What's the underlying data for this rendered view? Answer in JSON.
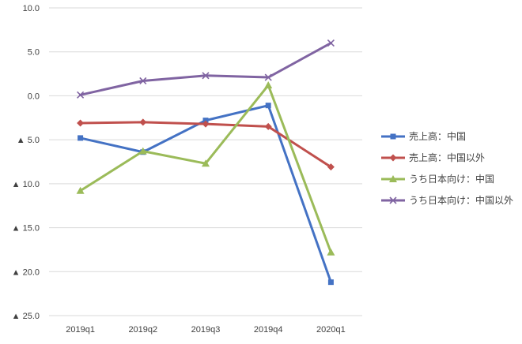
{
  "chart_data": {
    "type": "line",
    "categories": [
      "2019q1",
      "2019q2",
      "2019q3",
      "2019q4",
      "2020q1"
    ],
    "ylim": [
      -25,
      10
    ],
    "y_ticks": [
      {
        "value": 10,
        "label": "10.0"
      },
      {
        "value": 5,
        "label": "5.0"
      },
      {
        "value": 0,
        "label": "0.0"
      },
      {
        "value": -5,
        "label": "▲ 5.0"
      },
      {
        "value": -10,
        "label": "▲ 10.0"
      },
      {
        "value": -15,
        "label": "▲ 15.0"
      },
      {
        "value": -20,
        "label": "▲ 20.0"
      },
      {
        "value": -25,
        "label": "▲ 25.0"
      }
    ],
    "grid": true,
    "legend_position": "right",
    "series": [
      {
        "name": "売上高：中国",
        "color": "#4472C4",
        "marker": "square",
        "values": [
          -4.8,
          -6.4,
          -2.8,
          -1.1,
          -21.2
        ]
      },
      {
        "name": "売上高：中国以外",
        "color": "#C0504D",
        "marker": "diamond",
        "values": [
          -3.1,
          -3.0,
          -3.2,
          -3.5,
          -8.1
        ]
      },
      {
        "name": "うち日本向け：中国",
        "color": "#9BBB59",
        "marker": "triangle",
        "values": [
          -10.8,
          -6.3,
          -7.7,
          1.2,
          -17.8
        ]
      },
      {
        "name": "うち日本向け：中国以外",
        "color": "#8064A2",
        "marker": "x",
        "values": [
          0.1,
          1.7,
          2.3,
          2.1,
          6.0
        ]
      }
    ]
  }
}
